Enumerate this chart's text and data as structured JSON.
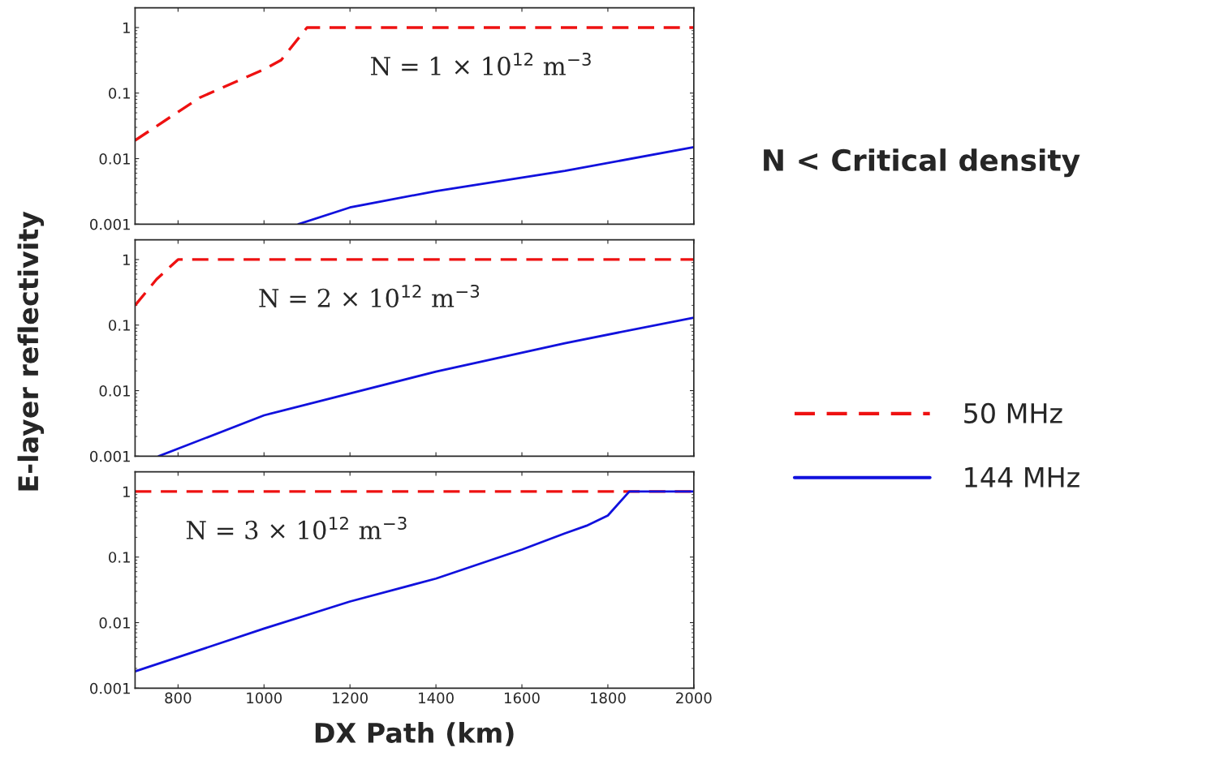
{
  "chart_data": [
    {
      "type": "line",
      "legend_title": "N < Critical density",
      "ylabel": "E-layer reflectivity",
      "legend": "right",
      "log": "y",
      "grid": false,
      "tick_labels": "y",
      "xlim": [
        700,
        2000
      ],
      "xticks": [
        800,
        1000,
        1200,
        1400,
        1600,
        1800,
        2000
      ],
      "ylim": [
        0.001,
        2
      ],
      "yticks": [
        0.001,
        0.01,
        0.1,
        1
      ],
      "annotations": [
        "N = 1 × 10$^{12}$ m$^{−3}$"
      ],
      "series": [
        {
          "name": "50 MHz",
          "color": "#ee1111",
          "line_style": "dashed",
          "x": [
            700,
            850,
            1000,
            1040,
            1100,
            2000
          ],
          "values": [
            0.019,
            0.085,
            0.23,
            0.32,
            1,
            1
          ]
        },
        {
          "name": "144 MHz",
          "color": "#1111dd",
          "line_style": "solid",
          "x": [
            1080,
            1200,
            1400,
            1700,
            2000
          ],
          "values": [
            0.001,
            0.0018,
            0.0032,
            0.0065,
            0.015
          ]
        }
      ]
    },
    {
      "type": "line",
      "log": "y",
      "grid": false,
      "tick_labels": "y",
      "xlim": [
        700,
        2000
      ],
      "xticks": [
        800,
        1000,
        1200,
        1400,
        1600,
        1800,
        2000
      ],
      "ylim": [
        0.001,
        2
      ],
      "yticks": [
        0.001,
        0.01,
        0.1,
        1
      ],
      "annotations": [
        "N = 2 × 10$^{12}$ m$^{−3}$"
      ],
      "series": [
        {
          "color": "#ee1111",
          "line_style": "dashed",
          "x": [
            700,
            750,
            800,
            2000
          ],
          "values": [
            0.2,
            0.5,
            1,
            1
          ]
        },
        {
          "color": "#1111dd",
          "line_style": "solid",
          "x": [
            755,
            1000,
            1400,
            1700,
            2000
          ],
          "values": [
            0.001,
            0.0042,
            0.0195,
            0.053,
            0.13
          ]
        }
      ]
    },
    {
      "type": "line",
      "xlabel": "DX Path (km)",
      "log": "y",
      "grid": false,
      "xlim": [
        700,
        2000
      ],
      "xticks": [
        800,
        1000,
        1200,
        1400,
        1600,
        1800,
        2000
      ],
      "ylim": [
        0.001,
        2
      ],
      "yticks": [
        0.001,
        0.01,
        0.1,
        1
      ],
      "annotations": [
        "N = 3 × 10$^{12}$ m$^{−3}$"
      ],
      "series": [
        {
          "color": "#ee1111",
          "line_style": "dashed",
          "x": [
            700,
            2000
          ],
          "values": [
            1,
            1
          ]
        },
        {
          "color": "#1111dd",
          "line_style": "solid",
          "x": [
            700,
            1000,
            1200,
            1400,
            1600,
            1700,
            1750,
            1800,
            1850,
            2000
          ],
          "values": [
            0.0018,
            0.0081,
            0.021,
            0.047,
            0.13,
            0.23,
            0.3,
            0.43,
            1,
            1
          ]
        }
      ]
    }
  ]
}
